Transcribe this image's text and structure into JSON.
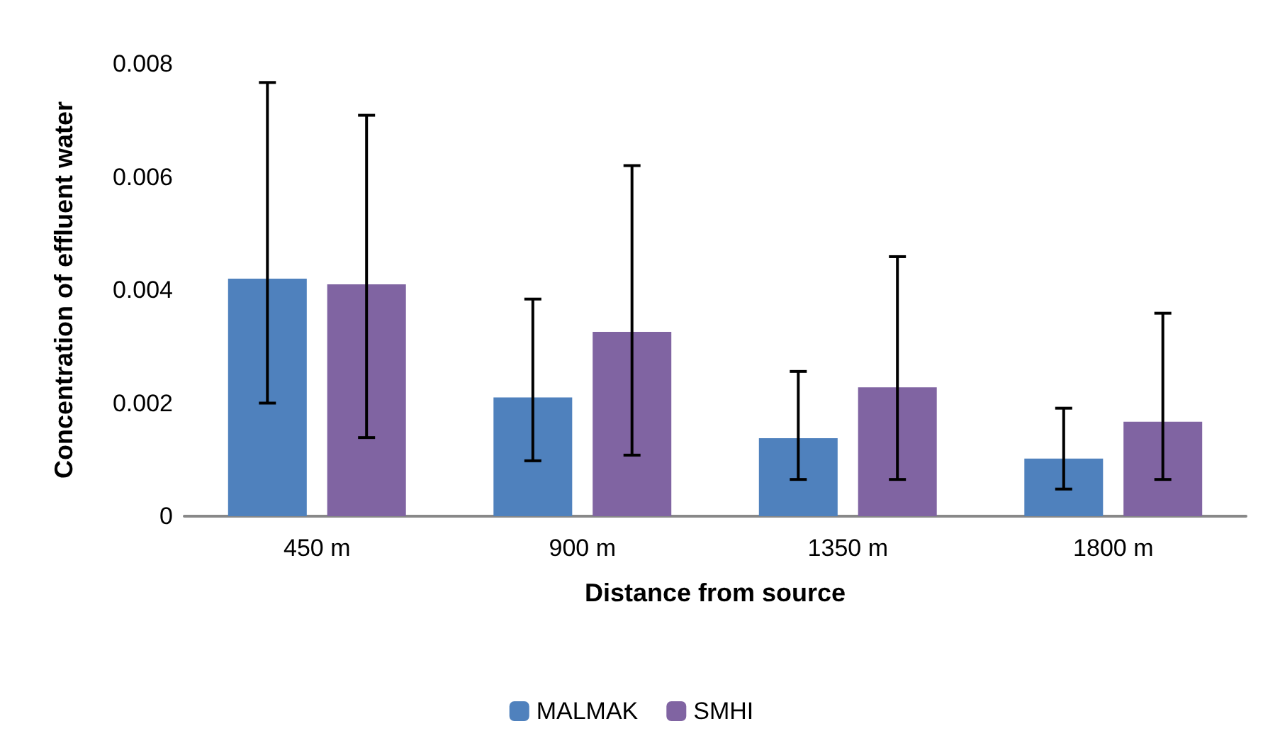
{
  "chart_data": {
    "type": "bar",
    "xlabel": "Distance from source",
    "ylabel": "Concentration of effluent water",
    "categories": [
      "450 m",
      "900 m",
      "1350 m",
      "1800 m"
    ],
    "series": [
      {
        "name": "MALMAK",
        "color": "#4f81bd",
        "values": [
          0.0042,
          0.0021,
          0.00138,
          0.00102
        ],
        "errors": [
          [
            0.002,
            0.00767
          ],
          [
            0.00098,
            0.00384
          ],
          [
            0.00065,
            0.00256
          ],
          [
            0.00048,
            0.00191
          ]
        ]
      },
      {
        "name": "SMHI",
        "color": "#8064a2",
        "values": [
          0.0041,
          0.00326,
          0.00228,
          0.00167
        ],
        "errors": [
          [
            0.00139,
            0.00709
          ],
          [
            0.00108,
            0.0062
          ],
          [
            0.00065,
            0.00459
          ],
          [
            0.00065,
            0.00359
          ]
        ]
      }
    ],
    "ylim": [
      0,
      0.008
    ],
    "yticks": [
      0,
      0.002,
      0.004,
      0.006,
      0.008
    ],
    "grid": false,
    "legend": "bottom"
  }
}
